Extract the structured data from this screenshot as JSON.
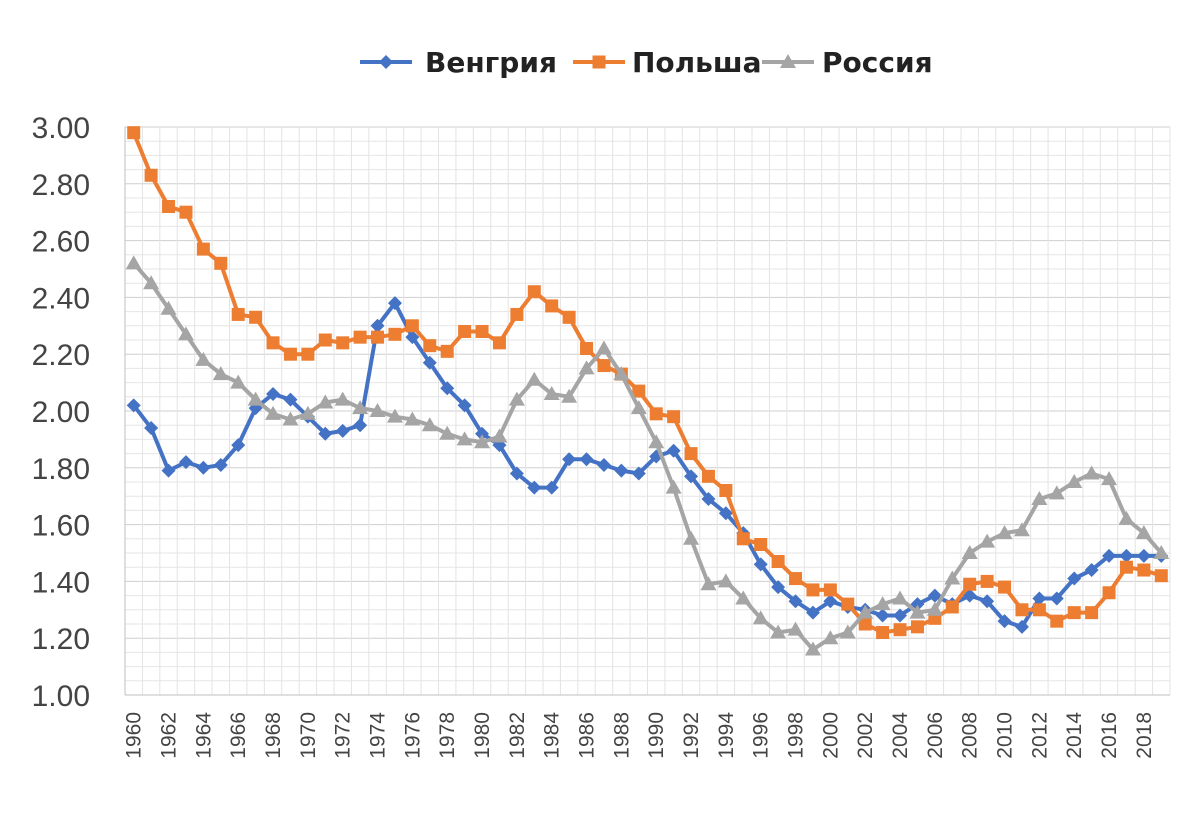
{
  "chart_data": {
    "type": "line",
    "title": "",
    "xlabel": "",
    "ylabel": "",
    "ylim": [
      1.0,
      3.0
    ],
    "y_ticks": [
      "1.00",
      "1.20",
      "1.40",
      "1.60",
      "1.80",
      "2.00",
      "2.20",
      "2.40",
      "2.60",
      "2.80",
      "3.00"
    ],
    "x": [
      1960,
      1961,
      1962,
      1963,
      1964,
      1965,
      1966,
      1967,
      1968,
      1969,
      1970,
      1971,
      1972,
      1973,
      1974,
      1975,
      1976,
      1977,
      1978,
      1979,
      1980,
      1981,
      1982,
      1983,
      1984,
      1985,
      1986,
      1987,
      1988,
      1989,
      1990,
      1991,
      1992,
      1993,
      1994,
      1995,
      1996,
      1997,
      1998,
      1999,
      2000,
      2001,
      2002,
      2003,
      2004,
      2005,
      2006,
      2007,
      2008,
      2009,
      2010,
      2011,
      2012,
      2013,
      2014,
      2015,
      2016,
      2017,
      2018,
      2019
    ],
    "x_tick_labels": [
      "1960",
      "1962",
      "1964",
      "1966",
      "1968",
      "1970",
      "1972",
      "1974",
      "1976",
      "1978",
      "1980",
      "1982",
      "1984",
      "1986",
      "1988",
      "1990",
      "1992",
      "1994",
      "1996",
      "1998",
      "2000",
      "2002",
      "2004",
      "2006",
      "2008",
      "2010",
      "2012",
      "2014",
      "2016",
      "2018"
    ],
    "grid": true,
    "legend_position": "top",
    "series": [
      {
        "name": "Венгрия",
        "color": "#4472C4",
        "marker": "diamond",
        "values": [
          2.02,
          1.94,
          1.79,
          1.82,
          1.8,
          1.81,
          1.88,
          2.01,
          2.06,
          2.04,
          1.98,
          1.92,
          1.93,
          1.95,
          2.3,
          2.38,
          2.26,
          2.17,
          2.08,
          2.02,
          1.92,
          1.88,
          1.78,
          1.73,
          1.73,
          1.83,
          1.83,
          1.81,
          1.79,
          1.78,
          1.84,
          1.86,
          1.77,
          1.69,
          1.64,
          1.57,
          1.46,
          1.38,
          1.33,
          1.29,
          1.33,
          1.31,
          1.3,
          1.28,
          1.28,
          1.32,
          1.35,
          1.32,
          1.35,
          1.33,
          1.26,
          1.24,
          1.34,
          1.34,
          1.41,
          1.44,
          1.49,
          1.49,
          1.49,
          1.49
        ]
      },
      {
        "name": "Польша",
        "color": "#ED7D31",
        "marker": "square",
        "values": [
          2.98,
          2.83,
          2.72,
          2.7,
          2.57,
          2.52,
          2.34,
          2.33,
          2.24,
          2.2,
          2.2,
          2.25,
          2.24,
          2.26,
          2.26,
          2.27,
          2.3,
          2.23,
          2.21,
          2.28,
          2.28,
          2.24,
          2.34,
          2.42,
          2.37,
          2.33,
          2.22,
          2.16,
          2.13,
          2.07,
          1.99,
          1.98,
          1.85,
          1.77,
          1.72,
          1.55,
          1.53,
          1.47,
          1.41,
          1.37,
          1.37,
          1.32,
          1.25,
          1.22,
          1.23,
          1.24,
          1.27,
          1.31,
          1.39,
          1.4,
          1.38,
          1.3,
          1.3,
          1.26,
          1.29,
          1.29,
          1.36,
          1.45,
          1.44,
          1.42
        ]
      },
      {
        "name": "Россия",
        "color": "#A5A5A5",
        "marker": "triangle",
        "values": [
          2.52,
          2.45,
          2.36,
          2.27,
          2.18,
          2.13,
          2.1,
          2.04,
          1.99,
          1.97,
          1.99,
          2.03,
          2.04,
          2.01,
          2.0,
          1.98,
          1.97,
          1.95,
          1.92,
          1.9,
          1.89,
          1.91,
          2.04,
          2.11,
          2.06,
          2.05,
          2.15,
          2.22,
          2.13,
          2.01,
          1.89,
          1.73,
          1.55,
          1.39,
          1.4,
          1.34,
          1.27,
          1.22,
          1.23,
          1.16,
          1.2,
          1.22,
          1.29,
          1.32,
          1.34,
          1.29,
          1.3,
          1.41,
          1.5,
          1.54,
          1.57,
          1.58,
          1.69,
          1.71,
          1.75,
          1.78,
          1.76,
          1.62,
          1.57,
          1.5
        ]
      }
    ]
  }
}
